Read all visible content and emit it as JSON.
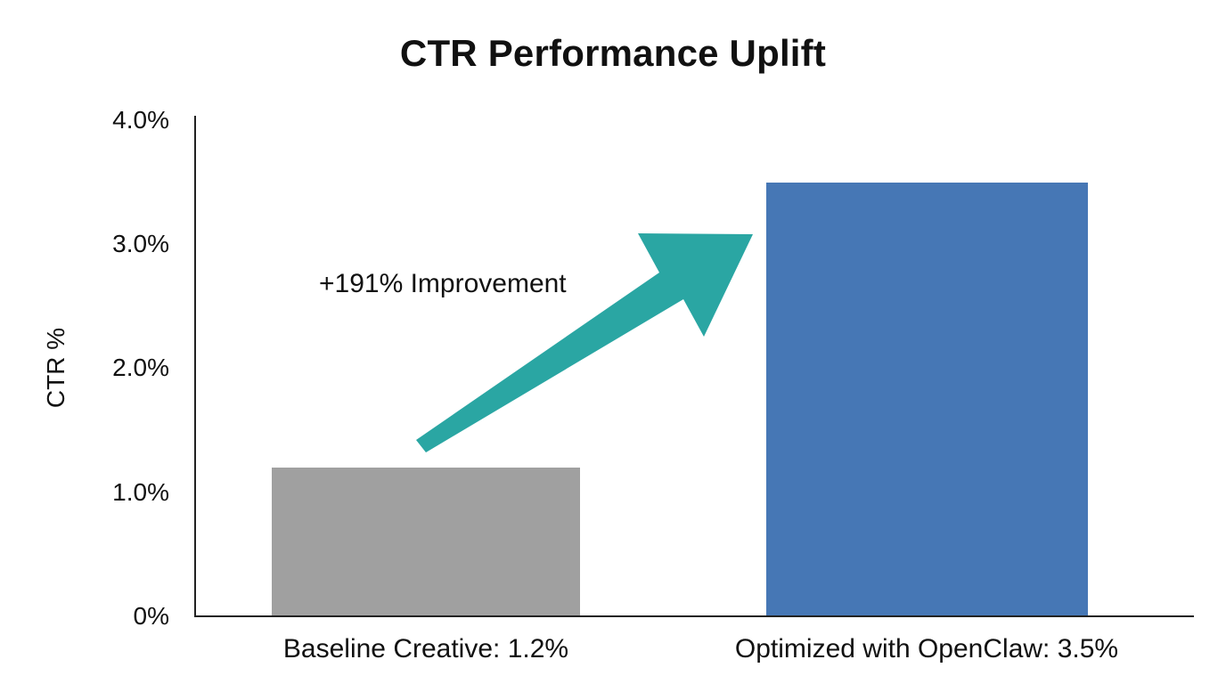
{
  "chart_data": {
    "type": "bar",
    "title": "CTR Performance Uplift",
    "xlabel": "",
    "ylabel": "CTR %",
    "ylim": [
      0,
      4.0
    ],
    "yticks": [
      "0%",
      "1.0%",
      "2.0%",
      "3.0%",
      "4.0%"
    ],
    "grid": false,
    "legend": null,
    "categories": [
      "Baseline Creative: 1.2%",
      "Optimized with OpenClaw: 3.5%"
    ],
    "values": [
      1.2,
      3.5
    ],
    "colors": [
      "#A0A0A0",
      "#4677B5"
    ],
    "annotations": [
      {
        "text": "+191% Improvement",
        "type": "arrow",
        "color": "#2AA6A3"
      }
    ]
  },
  "colors": {
    "baseline_bar": "#A0A0A0",
    "optimized_bar": "#4677B5",
    "arrow": "#2AA6A3",
    "axis": "#222222",
    "text": "#111111"
  }
}
